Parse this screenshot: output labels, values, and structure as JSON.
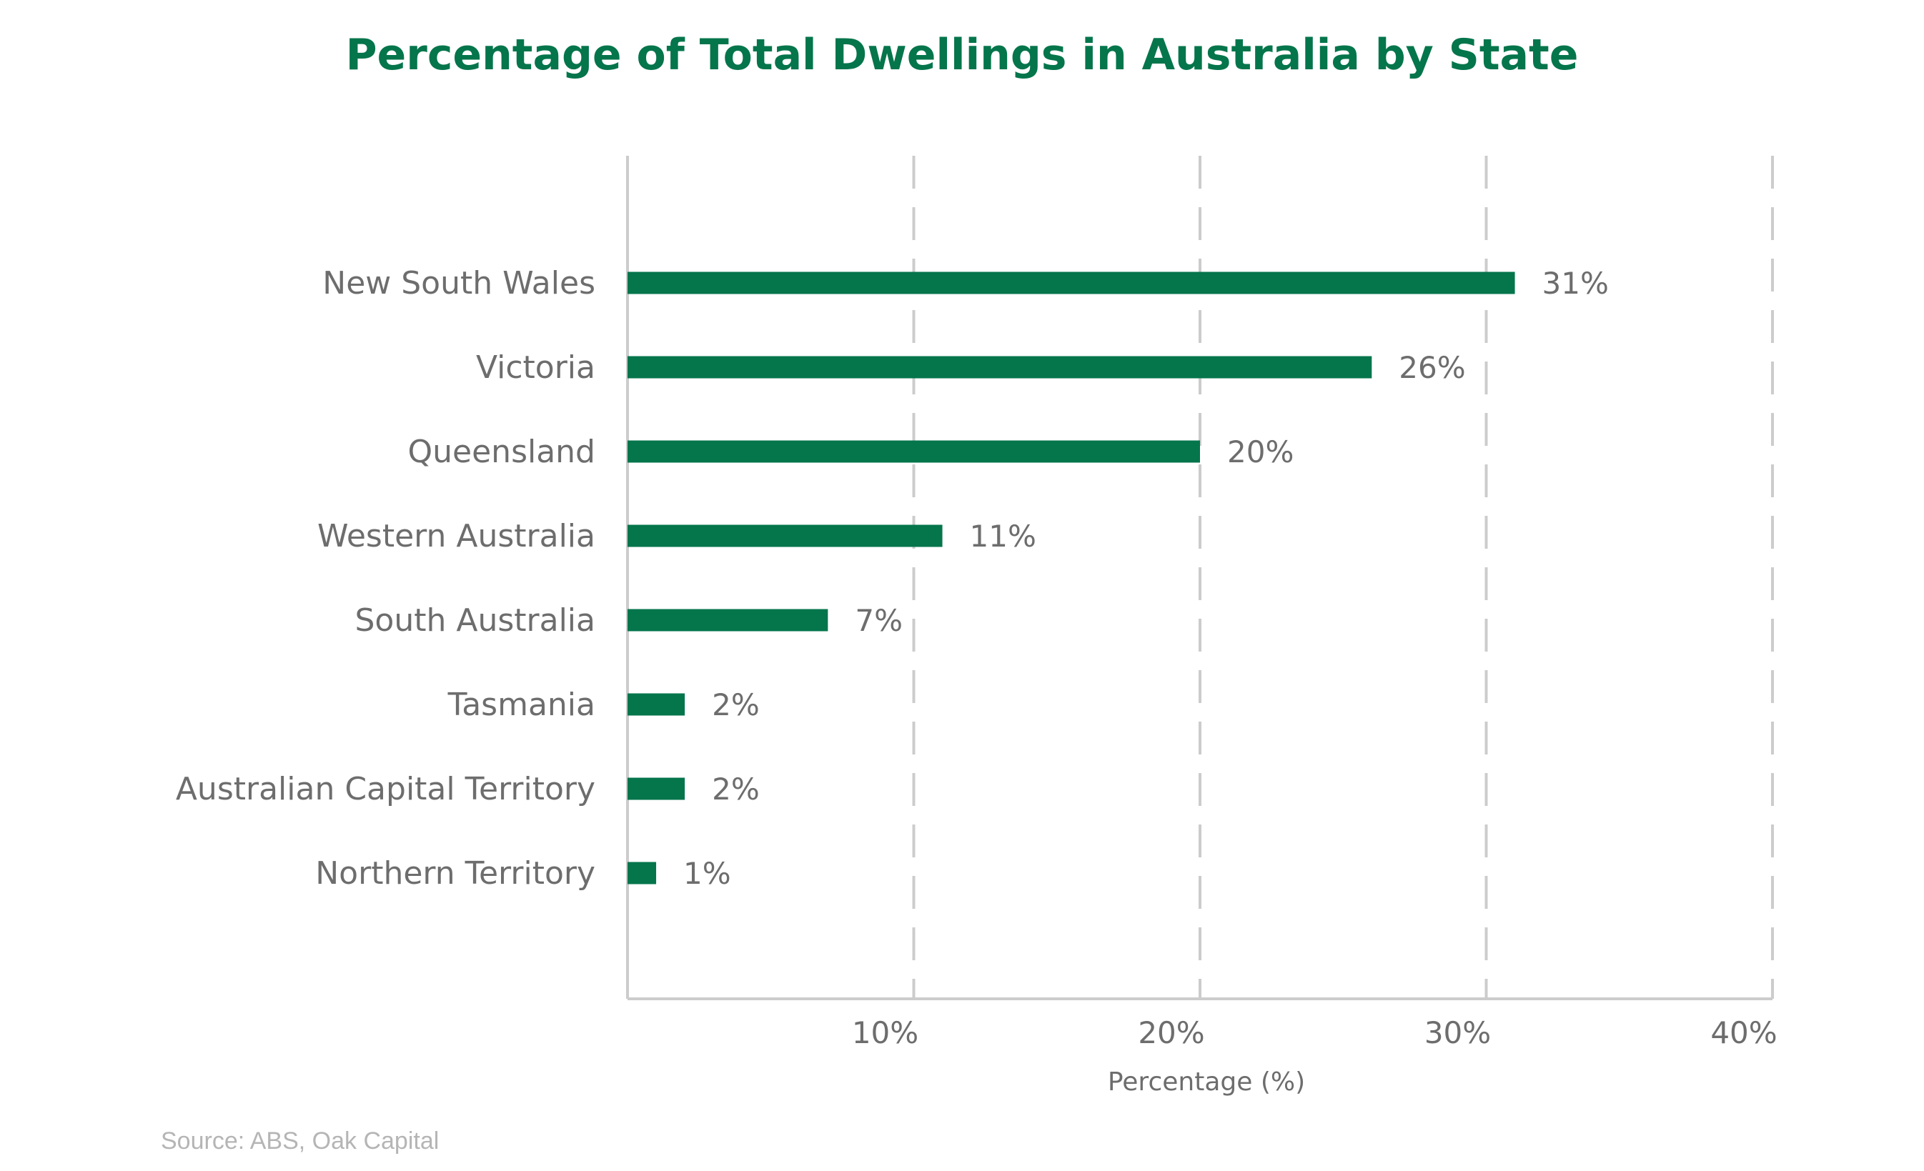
{
  "chart_data": {
    "type": "bar",
    "orientation": "horizontal",
    "title": "Percentage of Total Dwellings in Australia by State",
    "xlabel": "Percentage (%)",
    "ylabel": "",
    "xlim": [
      0,
      40
    ],
    "x_ticks": [
      10,
      20,
      30,
      40
    ],
    "x_tick_labels": [
      "10%",
      "20%",
      "30%",
      "40%"
    ],
    "grid": "vertical dashed",
    "categories": [
      "New South Wales",
      "Victoria",
      "Queensland",
      "Western Australia",
      "South Australia",
      "Tasmania",
      "Australian Capital Territory",
      "Northern Territory"
    ],
    "values": [
      31,
      26,
      20,
      11,
      7,
      2,
      2,
      1
    ],
    "value_labels": [
      "31%",
      "26%",
      "20%",
      "11%",
      "7%",
      "2%",
      "2%",
      "1%"
    ],
    "bar_color": "#05754c",
    "source": "Source: ABS, Oak Capital"
  }
}
